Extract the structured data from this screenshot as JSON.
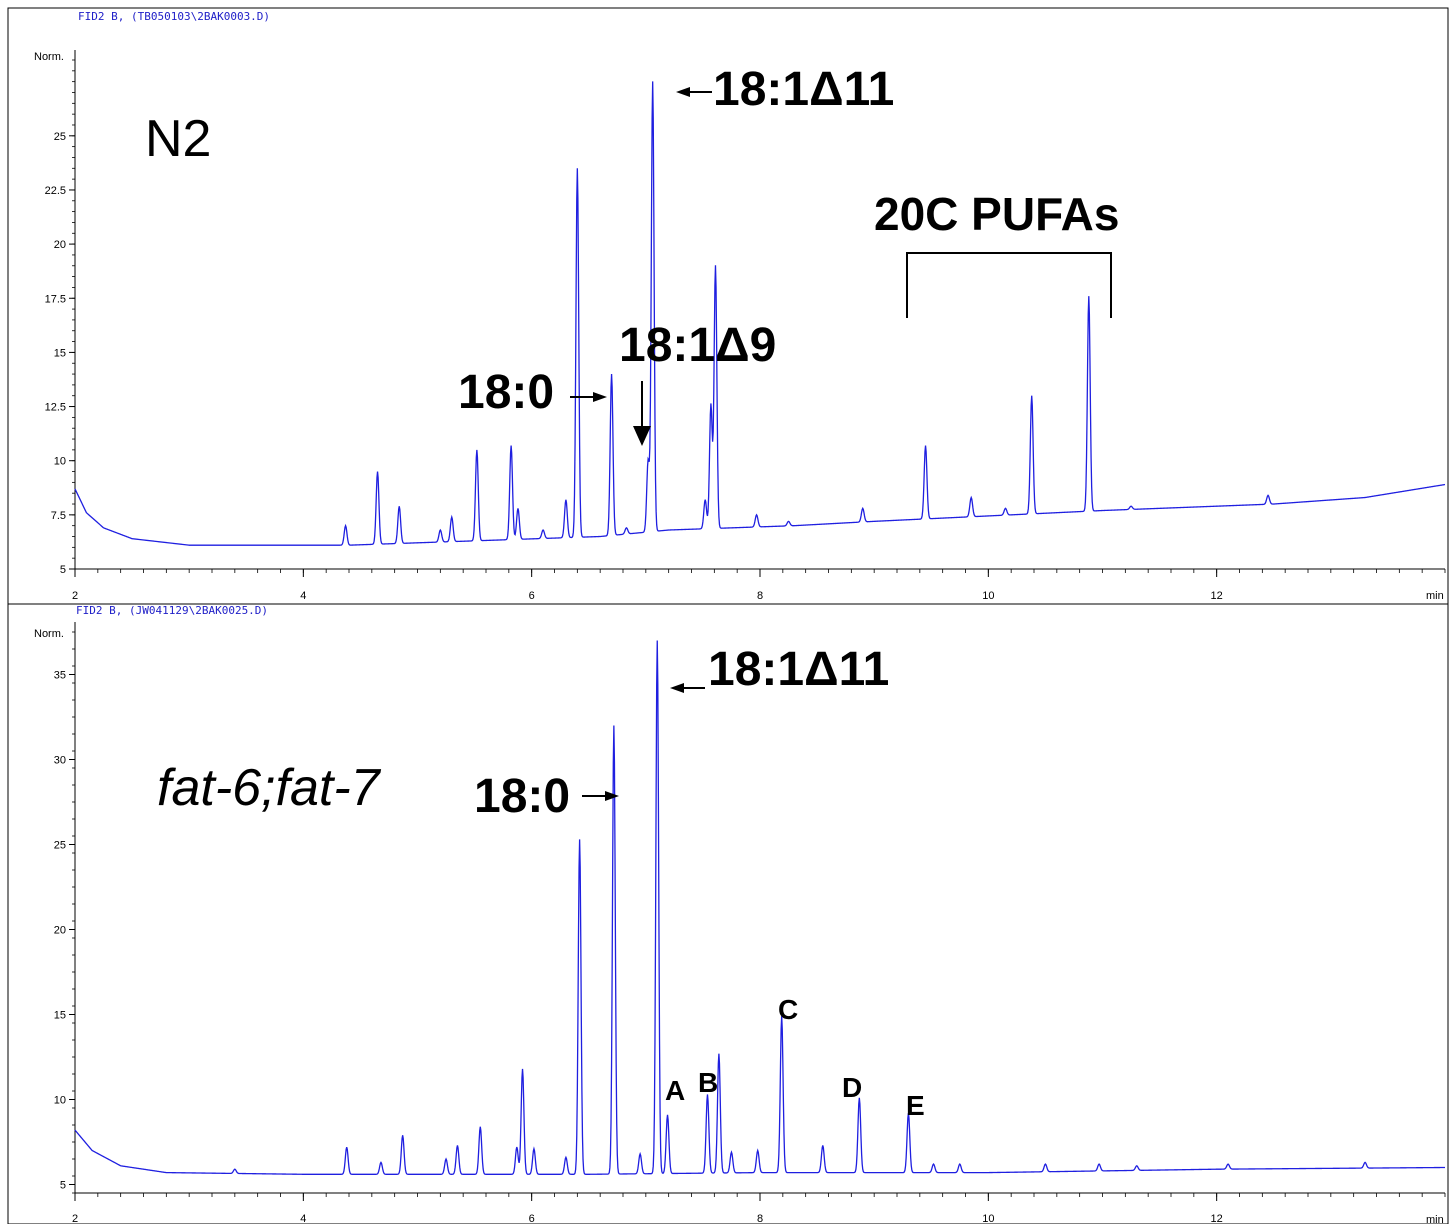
{
  "chart_data": [
    {
      "type": "line",
      "header": "FID2 B, (TB050103\\2BAK0003.D)",
      "sample_label": "N2",
      "ylabel": "Norm.",
      "xlabel": "min",
      "xlim": [
        2,
        14.0
      ],
      "ylim": [
        5,
        28.5
      ],
      "x_ticks": [
        2,
        4,
        6,
        8,
        10,
        12
      ],
      "y_ticks": [
        5,
        7.5,
        10,
        12.5,
        15,
        17.5,
        20,
        22.5,
        25
      ],
      "series": [
        {
          "color": "#1f1fe0",
          "baseline": [
            [
              2.0,
              8.7
            ],
            [
              2.1,
              7.6
            ],
            [
              2.25,
              6.9
            ],
            [
              2.5,
              6.4
            ],
            [
              3.0,
              6.1
            ],
            [
              4.4,
              6.1
            ],
            [
              5.5,
              6.3
            ],
            [
              6.6,
              6.5
            ],
            [
              7.2,
              6.8
            ],
            [
              8.3,
              7.0
            ],
            [
              9.0,
              7.2
            ],
            [
              11.0,
              7.7
            ],
            [
              12.5,
              8.0
            ],
            [
              13.3,
              8.3
            ],
            [
              14.0,
              8.9
            ]
          ],
          "peaks": [
            [
              4.37,
              7.0
            ],
            [
              4.65,
              9.5
            ],
            [
              4.84,
              7.9
            ],
            [
              5.2,
              6.8
            ],
            [
              5.3,
              7.4
            ],
            [
              5.52,
              10.5
            ],
            [
              5.82,
              10.7
            ],
            [
              5.88,
              7.8
            ],
            [
              6.1,
              6.8
            ],
            [
              6.3,
              8.2
            ],
            [
              6.4,
              23.5
            ],
            [
              6.7,
              14.0
            ],
            [
              6.83,
              6.9
            ],
            [
              7.02,
              10.0
            ],
            [
              7.06,
              27.5
            ],
            [
              7.52,
              8.2
            ],
            [
              7.57,
              12.6
            ],
            [
              7.61,
              19.0
            ],
            [
              7.97,
              7.5
            ],
            [
              8.25,
              7.2
            ],
            [
              8.9,
              7.8
            ],
            [
              9.45,
              10.7
            ],
            [
              9.85,
              8.3
            ],
            [
              10.15,
              7.8
            ],
            [
              10.38,
              13.0
            ],
            [
              10.88,
              17.6
            ],
            [
              11.25,
              7.9
            ],
            [
              12.45,
              8.4
            ]
          ]
        }
      ],
      "annotations": {
        "peak_18_0": "18:0",
        "peak_18_1d9": "18:1Δ9",
        "peak_18_1d11": "18:1Δ11",
        "pufa_group": "20C PUFAs"
      }
    },
    {
      "type": "line",
      "header": "FID2 B, (JW041129\\2BAK0025.D)",
      "sample_label": "fat-6;fat-7",
      "ylabel": "Norm.",
      "xlabel": "min",
      "xlim": [
        2,
        14.0
      ],
      "ylim": [
        4.5,
        37.5
      ],
      "x_ticks": [
        2,
        4,
        6,
        8,
        10,
        12
      ],
      "y_ticks": [
        5,
        10,
        15,
        20,
        25,
        30,
        35
      ],
      "series": [
        {
          "color": "#1f1fe0",
          "baseline": [
            [
              2.0,
              8.2
            ],
            [
              2.15,
              7.0
            ],
            [
              2.4,
              6.1
            ],
            [
              2.8,
              5.7
            ],
            [
              4.0,
              5.6
            ],
            [
              6.5,
              5.6
            ],
            [
              8.0,
              5.7
            ],
            [
              10.0,
              5.7
            ],
            [
              12.0,
              5.9
            ],
            [
              14.0,
              6.0
            ]
          ],
          "peaks": [
            [
              3.4,
              5.9
            ],
            [
              4.38,
              7.2
            ],
            [
              4.68,
              6.3
            ],
            [
              4.87,
              7.9
            ],
            [
              5.25,
              6.5
            ],
            [
              5.35,
              7.3
            ],
            [
              5.55,
              8.4
            ],
            [
              5.87,
              7.2
            ],
            [
              5.92,
              11.8
            ],
            [
              6.02,
              7.1
            ],
            [
              6.3,
              6.6
            ],
            [
              6.42,
              25.3
            ],
            [
              6.72,
              32.0
            ],
            [
              6.95,
              6.8
            ],
            [
              7.1,
              37.0
            ],
            [
              7.19,
              9.1
            ],
            [
              7.54,
              10.3
            ],
            [
              7.64,
              12.7
            ],
            [
              7.75,
              6.9
            ],
            [
              7.98,
              7.0
            ],
            [
              8.19,
              14.9
            ],
            [
              8.55,
              7.3
            ],
            [
              8.87,
              10.1
            ],
            [
              9.3,
              9.2
            ],
            [
              9.52,
              6.2
            ],
            [
              9.75,
              6.2
            ],
            [
              10.5,
              6.2
            ],
            [
              10.97,
              6.2
            ],
            [
              11.3,
              6.1
            ],
            [
              12.1,
              6.2
            ],
            [
              13.3,
              6.3
            ]
          ]
        }
      ],
      "annotations": {
        "peak_18_0": "18:0",
        "peak_18_1d11": "18:1Δ11",
        "peak_A": "A",
        "peak_B": "B",
        "peak_C": "C",
        "peak_D": "D",
        "peak_E": "E"
      }
    }
  ]
}
